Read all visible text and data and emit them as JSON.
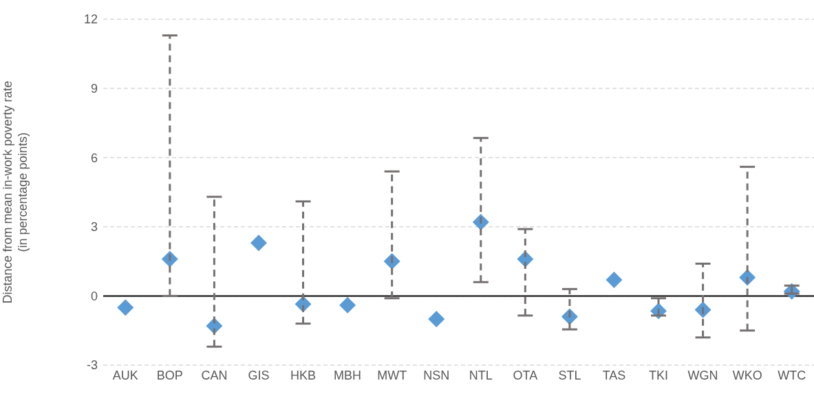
{
  "chart_data": {
    "type": "scatter",
    "ylabel": "Distance from mean in-work poverty rate\n(in percentage points)",
    "categories": [
      "AUK",
      "BOP",
      "CAN",
      "GIS",
      "HKB",
      "MBH",
      "MWT",
      "NSN",
      "NTL",
      "OTA",
      "STL",
      "TAS",
      "TKI",
      "WGN",
      "WKO",
      "WTC"
    ],
    "series": [
      {
        "color": "#5b9bd5",
        "values": [
          -0.5,
          1.6,
          -1.3,
          2.3,
          -0.35,
          -0.4,
          1.5,
          -1.0,
          3.2,
          1.6,
          -0.9,
          0.7,
          -0.65,
          -0.6,
          0.8,
          0.2
        ],
        "errors": [
          null,
          [
            0,
            11.3
          ],
          [
            -2.2,
            4.3
          ],
          null,
          [
            -1.2,
            4.1
          ],
          null,
          [
            -0.1,
            5.4
          ],
          null,
          [
            0.6,
            6.85
          ],
          [
            -0.85,
            2.9
          ],
          [
            -1.45,
            0.3
          ],
          null,
          [
            -0.85,
            -0.1
          ],
          [
            -1.8,
            1.4
          ],
          [
            -1.5,
            5.6
          ],
          [
            0.1,
            0.45
          ]
        ]
      }
    ],
    "ylim": [
      -3,
      12
    ],
    "yticks": [
      -3,
      0,
      3,
      6,
      9,
      12
    ],
    "grid": "y",
    "marker": "diamond",
    "legend": false,
    "ref_lines": [
      {
        "axis": "y",
        "value": 0,
        "color": "#000000"
      }
    ]
  }
}
